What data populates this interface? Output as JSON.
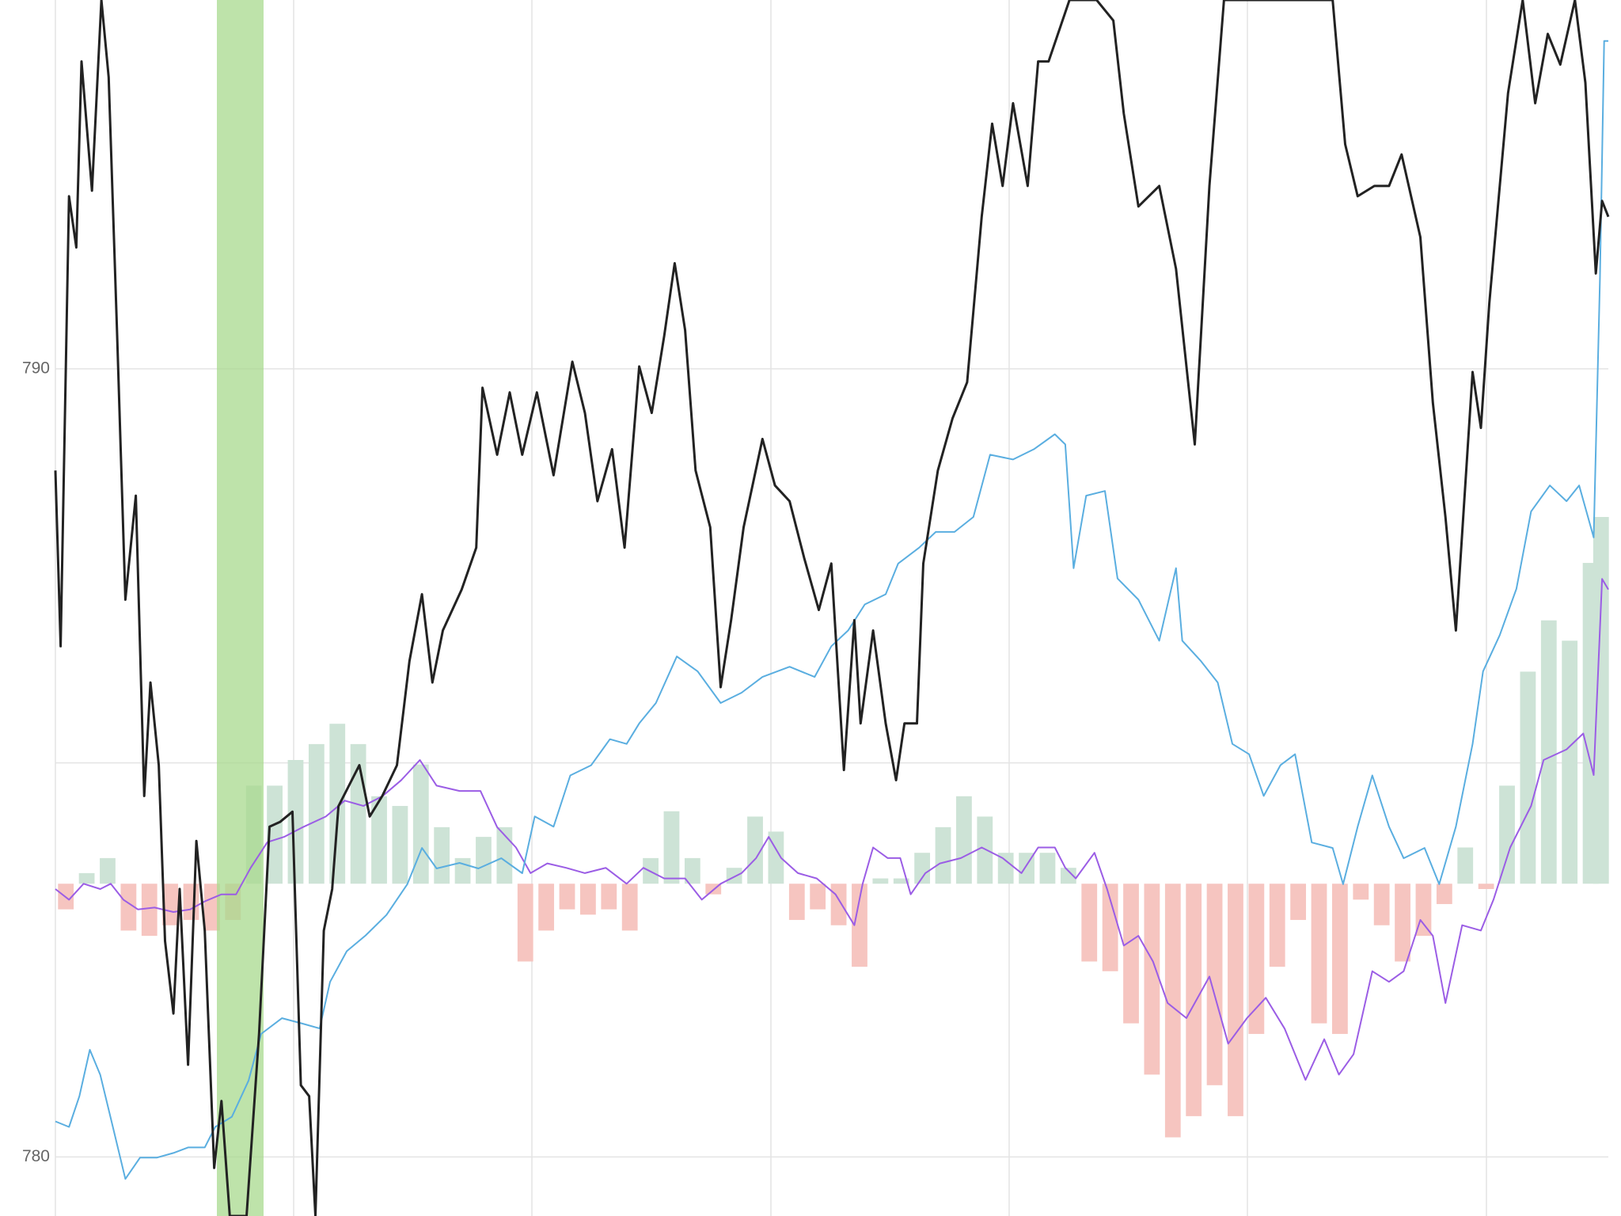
{
  "chart_data": {
    "type": "line",
    "xlim": [
      0,
      1487
    ],
    "ylim": [
      779.25,
      794.68
    ],
    "yticks": [
      780,
      790
    ],
    "ygrid_minor": [
      785
    ],
    "y2lim": [
      -3.76,
      10
    ],
    "grid": true,
    "series": [
      {
        "type": "bar",
        "axis": "y2",
        "positive_color": "#cde3d6",
        "negative_color": "#f6c5c0",
        "x": [
          10,
          30,
          50,
          70,
          90,
          110,
          130,
          150,
          170,
          190,
          210,
          230,
          250,
          270,
          290,
          310,
          330,
          350,
          370,
          390,
          410,
          430,
          450,
          470,
          490,
          510,
          530,
          550,
          570,
          590,
          610,
          630,
          650,
          670,
          690,
          710,
          730,
          750,
          770,
          790,
          810,
          830,
          850,
          870,
          890,
          910,
          930,
          950,
          970,
          990,
          1010,
          1030,
          1050,
          1070,
          1090,
          1110,
          1130,
          1150,
          1170,
          1190,
          1210,
          1230,
          1250,
          1270,
          1290,
          1310,
          1330,
          1350,
          1370,
          1390,
          1410,
          1430,
          1450,
          1470,
          1480
        ],
        "values": [
          -0.29,
          0.12,
          0.29,
          -0.53,
          -0.59,
          -0.47,
          -0.41,
          -0.53,
          -0.41,
          1.11,
          1.11,
          1.4,
          1.58,
          1.81,
          1.58,
          0.99,
          0.88,
          1.35,
          0.64,
          0.29,
          0.53,
          0.64,
          -0.88,
          -0.53,
          -0.29,
          -0.35,
          -0.29,
          -0.53,
          0.29,
          0.82,
          0.29,
          -0.12,
          0.18,
          0.76,
          0.59,
          -0.41,
          -0.29,
          -0.47,
          -0.94,
          0.06,
          0.06,
          0.35,
          0.64,
          0.99,
          0.76,
          0.35,
          0.35,
          0.35,
          0.18,
          -0.88,
          -0.99,
          -1.58,
          -2.16,
          -2.87,
          -2.63,
          -2.28,
          -2.63,
          -1.7,
          -0.94,
          -0.41,
          -1.58,
          -1.7,
          -0.18,
          -0.47,
          -0.88,
          -0.59,
          -0.23,
          0.41,
          -0.06,
          1.11,
          2.4,
          2.98,
          2.75,
          3.63,
          4.15
        ]
      },
      {
        "type": "line",
        "axis": "y2",
        "color": "#9b5de5",
        "x": [
          0,
          13,
          27,
          43,
          53,
          65,
          79,
          95,
          113,
          129,
          143,
          159,
          173,
          187,
          203,
          219,
          237,
          259,
          277,
          295,
          313,
          331,
          349,
          365,
          387,
          407,
          423,
          441,
          455,
          471,
          489,
          507,
          527,
          547,
          563,
          583,
          603,
          619,
          637,
          657,
          671,
          683,
          695,
          711,
          729,
          747,
          765,
          773,
          783,
          797,
          809,
          819,
          833,
          847,
          867,
          887,
          907,
          925,
          941,
          957,
          967,
          977,
          995,
          1007,
          1023,
          1037,
          1051,
          1065,
          1083,
          1105,
          1123,
          1141,
          1159,
          1177,
          1197,
          1215,
          1229,
          1243,
          1261,
          1277,
          1291,
          1307,
          1319,
          1331,
          1347,
          1365,
          1377,
          1393,
          1413,
          1425,
          1447,
          1463,
          1473,
          1481,
          1487
        ],
        "values": [
          -0.06,
          -0.18,
          0,
          -0.06,
          0,
          -0.18,
          -0.29,
          -0.27,
          -0.32,
          -0.29,
          -0.2,
          -0.12,
          -0.12,
          0.18,
          0.47,
          0.53,
          0.64,
          0.76,
          0.94,
          0.88,
          0.99,
          1.17,
          1.4,
          1.11,
          1.05,
          1.05,
          0.64,
          0.41,
          0.12,
          0.23,
          0.18,
          0.12,
          0.18,
          0,
          0.18,
          0.06,
          0.06,
          -0.18,
          0,
          0.12,
          0.29,
          0.53,
          0.29,
          0.12,
          0.06,
          -0.12,
          -0.47,
          0,
          0.41,
          0.29,
          0.29,
          -0.12,
          0.12,
          0.23,
          0.29,
          0.41,
          0.29,
          0.12,
          0.41,
          0.41,
          0.18,
          0.06,
          0.35,
          -0.06,
          -0.7,
          -0.59,
          -0.88,
          -1.35,
          -1.52,
          -1.05,
          -1.81,
          -1.52,
          -1.29,
          -1.64,
          -2.22,
          -1.76,
          -2.16,
          -1.93,
          -0.99,
          -1.11,
          -0.99,
          -0.41,
          -0.59,
          -1.35,
          -0.47,
          -0.53,
          -0.18,
          0.41,
          0.88,
          1.4,
          1.52,
          1.7,
          1.23,
          3.45,
          3.33
        ]
      },
      {
        "type": "line",
        "color": "#5aaee0",
        "x": [
          0,
          13,
          23,
          33,
          43,
          55,
          67,
          81,
          97,
          113,
          127,
          143,
          153,
          169,
          185,
          197,
          217,
          237,
          253,
          263,
          279,
          297,
          317,
          337,
          351,
          365,
          387,
          405,
          427,
          447,
          459,
          477,
          493,
          513,
          531,
          547,
          559,
          575,
          595,
          615,
          637,
          657,
          677,
          703,
          727,
          743,
          759,
          775,
          795,
          807,
          827,
          843,
          861,
          879,
          895,
          917,
          937,
          957,
          967,
          975,
          987,
          1005,
          1017,
          1037,
          1057,
          1073,
          1079,
          1097,
          1113,
          1127,
          1143,
          1157,
          1173,
          1187,
          1203,
          1223,
          1233,
          1247,
          1261,
          1277,
          1291,
          1311,
          1325,
          1341,
          1357,
          1367,
          1383,
          1399,
          1413,
          1431,
          1447,
          1459,
          1473,
          1479,
          1483,
          1487
        ],
        "values": [
          780.45,
          780.38,
          780.77,
          781.36,
          781.04,
          780.38,
          779.72,
          779.99,
          779.99,
          780.05,
          780.12,
          780.12,
          780.38,
          780.51,
          780.97,
          781.56,
          781.76,
          781.69,
          781.63,
          782.22,
          782.61,
          782.81,
          783.07,
          783.46,
          783.92,
          783.66,
          783.73,
          783.66,
          783.79,
          783.6,
          784.32,
          784.19,
          784.84,
          784.97,
          785.3,
          785.24,
          785.5,
          785.76,
          786.35,
          786.16,
          785.76,
          785.89,
          786.09,
          786.22,
          786.09,
          786.48,
          786.68,
          787.01,
          787.14,
          787.53,
          787.73,
          787.93,
          787.93,
          788.12,
          788.91,
          788.85,
          788.98,
          789.17,
          789.04,
          787.47,
          788.39,
          788.45,
          787.34,
          787.07,
          786.55,
          787.47,
          786.55,
          786.29,
          786.02,
          785.24,
          785.11,
          784.58,
          784.97,
          785.11,
          783.99,
          783.92,
          783.46,
          784.19,
          784.84,
          784.19,
          783.79,
          783.92,
          783.46,
          784.19,
          785.24,
          786.16,
          786.62,
          787.21,
          788.19,
          788.52,
          788.32,
          788.52,
          787.86,
          791.14,
          794.16,
          794.16
        ]
      },
      {
        "type": "line",
        "color": "#222222",
        "x": [
          0,
          5,
          13,
          20,
          25,
          35,
          44,
          51,
          59,
          67,
          77,
          85,
          91,
          99,
          105,
          113,
          119,
          127,
          135,
          143,
          152,
          159,
          167,
          183,
          195,
          205,
          215,
          227,
          235,
          243,
          249,
          257,
          265,
          271,
          281,
          291,
          301,
          313,
          327,
          339,
          351,
          361,
          371,
          389,
          403,
          409,
          423,
          435,
          447,
          461,
          477,
          495,
          507,
          519,
          533,
          545,
          559,
          571,
          583,
          593,
          603,
          613,
          627,
          637,
          647,
          659,
          677,
          689,
          703,
          717,
          731,
          743,
          755,
          765,
          771,
          783,
          795,
          805,
          813,
          825,
          831,
          845,
          859,
          873,
          887,
          897,
          907,
          917,
          931,
          941,
          951,
          971,
          997,
          1013,
          1023,
          1037,
          1057,
          1073,
          1091,
          1105,
          1119,
          1137,
          1223,
          1235,
          1247,
          1263,
          1277,
          1289,
          1307,
          1319,
          1331,
          1341,
          1357,
          1365,
          1373,
          1391,
          1405,
          1417,
          1429,
          1441,
          1455,
          1465,
          1475,
          1481,
          1487
        ],
        "values": [
          788.71,
          786.48,
          792.19,
          791.54,
          793.9,
          792.26,
          794.68,
          793.7,
          790.49,
          787.07,
          788.39,
          784.58,
          786.02,
          784.97,
          782.74,
          781.82,
          783.4,
          781.17,
          784.01,
          782.87,
          779.86,
          780.71,
          779.25,
          779.25,
          781.56,
          784.19,
          784.25,
          784.38,
          780.91,
          780.77,
          779.25,
          782.87,
          783.4,
          784.45,
          784.71,
          784.97,
          784.32,
          784.58,
          784.97,
          786.29,
          787.14,
          786.02,
          786.68,
          787.2,
          787.73,
          789.76,
          788.91,
          789.7,
          788.91,
          789.7,
          788.65,
          790.09,
          789.44,
          788.32,
          788.98,
          787.73,
          790.03,
          789.44,
          790.42,
          791.34,
          790.49,
          788.71,
          787.99,
          785.96,
          786.81,
          787.99,
          789.11,
          788.52,
          788.32,
          787.6,
          786.94,
          787.53,
          784.91,
          786.81,
          785.5,
          786.68,
          785.5,
          784.78,
          785.5,
          785.5,
          787.53,
          788.71,
          789.37,
          789.83,
          791.93,
          793.11,
          792.32,
          793.37,
          792.32,
          793.9,
          793.9,
          794.68,
          794.68,
          794.42,
          793.24,
          792.06,
          792.32,
          791.27,
          789.04,
          792.32,
          794.68,
          794.68,
          794.68,
          792.85,
          792.19,
          792.32,
          792.32,
          792.72,
          791.67,
          789.57,
          788.12,
          786.68,
          789.96,
          789.25,
          790.83,
          793.5,
          794.68,
          793.37,
          794.25,
          793.86,
          794.68,
          793.63,
          791.21,
          792.13,
          791.93
        ]
      }
    ]
  }
}
